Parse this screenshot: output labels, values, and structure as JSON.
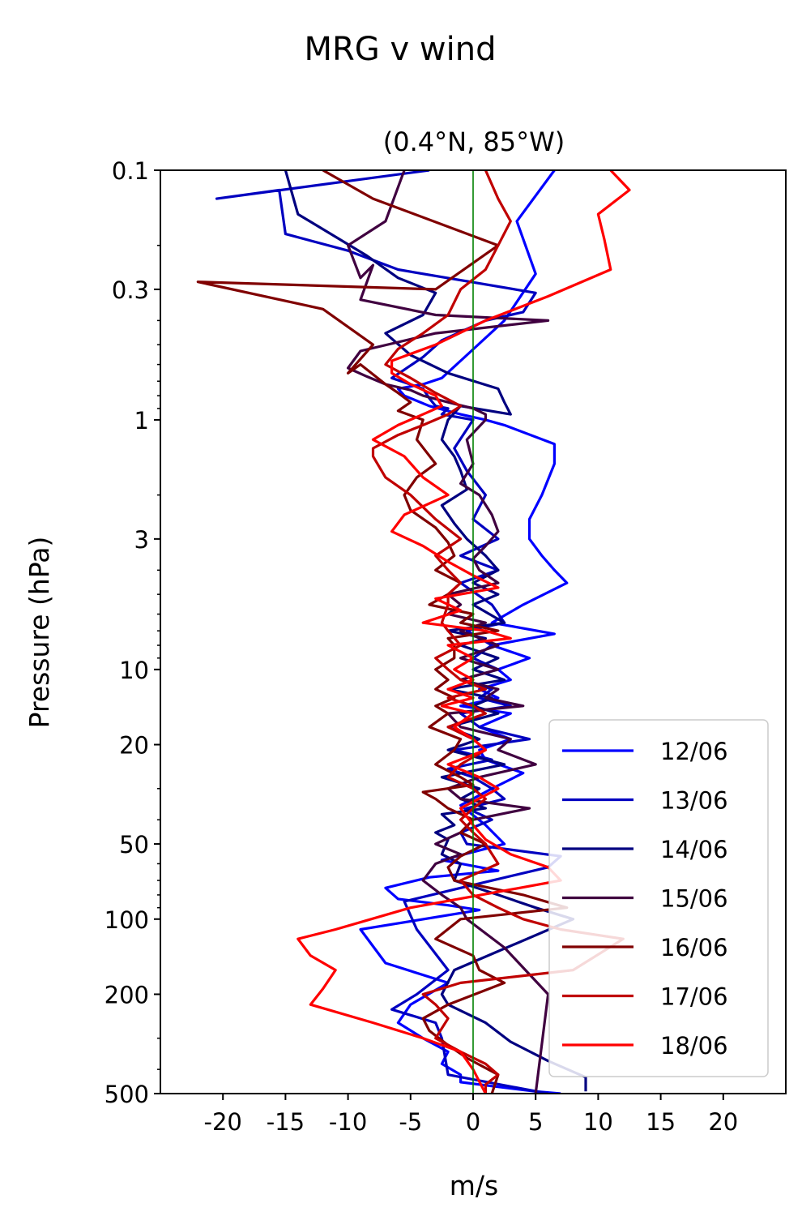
{
  "chart_data": {
    "type": "line",
    "suptitle": "MRG v wind",
    "title": "(0.4°N, 85°W)",
    "xlabel": "m/s",
    "ylabel": "Pressure (hPa)",
    "xlim": [
      -25,
      25
    ],
    "ylim": [
      500,
      0.1
    ],
    "yscale": "log",
    "y_inverted": true,
    "xticks": [
      -20,
      -15,
      -10,
      -5,
      0,
      5,
      10,
      15,
      20
    ],
    "xtick_labels": [
      "-20",
      "-15",
      "-10",
      "-5",
      "0",
      "5",
      "10",
      "15",
      "20"
    ],
    "yticks": [
      0.1,
      0.3,
      1,
      3,
      10,
      20,
      50,
      100,
      200,
      500
    ],
    "ytick_labels": [
      "0.1",
      "0.3",
      "1",
      "3",
      "10",
      "20",
      "50",
      "100",
      "200",
      "500"
    ],
    "zero_line": {
      "x": 0,
      "color": "#008000"
    },
    "grid": false,
    "legend_position": "lower right",
    "series": [
      {
        "name": "12/06",
        "color": "#0000ff",
        "x": [
          6.5,
          3.5,
          5,
          2.5,
          -0.5,
          -2.5,
          -4,
          -6,
          -5.5,
          -3.5,
          -1,
          1,
          2.5,
          6.5,
          6.5,
          5.5,
          4.5,
          4.5,
          5.5,
          6.5,
          7.5,
          4,
          1.5,
          6.5,
          1.5,
          4.5,
          2,
          3,
          0.5,
          2,
          -1,
          3,
          0.5,
          3,
          0.5,
          1,
          4,
          1.5,
          -1,
          1,
          2.5,
          -2.5,
          2,
          -3.5,
          -7,
          -6,
          -2,
          0.5,
          -9,
          -7,
          -2,
          -5,
          -6,
          -4,
          -2,
          -2.5,
          -1,
          -1,
          2,
          5,
          7
        ],
        "p": [
          0.1,
          0.16,
          0.26,
          0.4,
          0.55,
          0.68,
          0.72,
          0.75,
          0.8,
          0.88,
          0.95,
          1.0,
          1.05,
          1.25,
          1.5,
          2.0,
          2.5,
          3.0,
          3.5,
          4.0,
          4.5,
          5.5,
          6.5,
          7.2,
          8.0,
          9.0,
          10,
          11,
          12,
          13,
          14,
          15,
          17,
          19,
          21,
          23,
          26,
          30,
          35,
          42,
          50,
          58,
          64,
          68,
          75,
          83,
          88,
          92,
          110,
          150,
          180,
          220,
          260,
          300,
          340,
          380,
          420,
          450,
          470,
          490,
          500
        ]
      },
      {
        "name": "13/06",
        "color": "#0000c0",
        "x": [
          -3.5,
          -20.5,
          -15.5,
          -15,
          -10,
          -6,
          5,
          4,
          1,
          -2.5,
          -4,
          -5.5,
          -6.5,
          -4,
          -3.5,
          -3,
          -2,
          -2.5,
          0,
          -1.5,
          -0.5,
          1,
          0,
          2,
          -1,
          2,
          -1,
          1.5,
          2.5,
          -0.5,
          1.5,
          0,
          2,
          -1,
          1.5,
          0.5,
          3,
          -1,
          0.5,
          4.5,
          -1.5,
          1.5,
          -2,
          0,
          1.5,
          2.5,
          -0.5,
          1.5,
          -1,
          -0.5,
          7,
          6,
          -1,
          -5.5,
          -4.5,
          -2,
          -4.5,
          -6.5,
          -3,
          -2.5,
          -2,
          6
        ],
        "p": [
          0.1,
          0.13,
          0.12,
          0.18,
          0.21,
          0.25,
          0.31,
          0.37,
          0.4,
          0.48,
          0.56,
          0.63,
          0.68,
          0.75,
          0.82,
          0.88,
          0.9,
          0.95,
          1.0,
          1.3,
          1.6,
          2.0,
          2.5,
          3.0,
          3.5,
          4.0,
          4.5,
          5.5,
          6.5,
          7.0,
          8,
          9,
          10,
          11,
          12,
          13,
          14,
          15,
          17,
          19,
          21,
          23,
          25,
          27,
          30,
          33,
          36,
          40,
          45,
          50,
          56,
          62,
          75,
          85,
          110,
          160,
          200,
          230,
          260,
          300,
          420,
          500
        ]
      },
      {
        "name": "14/06",
        "color": "#000080",
        "x": [
          -15,
          -14,
          -8.5,
          -6,
          -3,
          -4,
          -7,
          -5,
          -2,
          2,
          2.5,
          3,
          -1,
          -2,
          -2.5,
          -1.5,
          -1,
          -0.5,
          -2.5,
          -1.5,
          -0.5,
          1,
          2,
          0,
          2,
          0,
          2.5,
          -2,
          1,
          -1,
          2,
          0,
          2.5,
          -2,
          1.5,
          0,
          2,
          -2,
          0.5,
          -2,
          2.5,
          -2.5,
          0.5,
          -1,
          1,
          -2.5,
          -1.5,
          -3,
          -2,
          -2.5,
          -1,
          -1.5,
          2,
          5,
          8,
          -1.5,
          -2.5,
          -2,
          1,
          3,
          6,
          9,
          9
        ],
        "p": [
          0.1,
          0.15,
          0.22,
          0.27,
          0.31,
          0.38,
          0.45,
          0.55,
          0.65,
          0.75,
          0.85,
          0.95,
          0.88,
          1.0,
          1.2,
          1.4,
          1.6,
          1.9,
          2.2,
          2.6,
          3.0,
          3.5,
          4.0,
          4.5,
          5.0,
          5.5,
          6.5,
          7.0,
          7.5,
          8,
          9,
          10,
          11,
          12,
          13,
          14,
          15,
          17,
          19,
          21,
          24,
          27,
          30,
          33,
          36,
          38,
          42,
          45,
          48,
          55,
          60,
          70,
          80,
          90,
          100,
          160,
          200,
          220,
          260,
          310,
          370,
          430,
          490
        ]
      },
      {
        "name": "15/06",
        "color": "#400040",
        "x": [
          -5.5,
          -7,
          -10,
          -9,
          -8,
          -9,
          -3,
          6,
          -3,
          -9,
          -10,
          -8.5,
          -7,
          -5,
          -4,
          -2,
          0,
          1,
          1,
          -0.5,
          0,
          -1,
          0.5,
          1.5,
          2,
          1,
          0,
          0.5,
          2,
          -2,
          -1,
          -2,
          1,
          -1,
          2,
          -1,
          2,
          -1,
          2,
          1,
          4,
          -2,
          -1,
          3,
          2,
          5,
          0.5,
          -2,
          -1,
          4.5,
          0,
          -1,
          -3,
          -1,
          -3,
          -4,
          -2.5,
          -1,
          -0.5,
          2.5,
          6,
          5
        ],
        "p": [
          0.1,
          0.16,
          0.2,
          0.27,
          0.24,
          0.33,
          0.38,
          0.4,
          0.45,
          0.53,
          0.62,
          0.67,
          0.72,
          0.76,
          0.8,
          0.85,
          0.9,
          0.95,
          1.0,
          1.2,
          1.5,
          1.8,
          2.0,
          2.4,
          2.8,
          3.2,
          3.6,
          4.0,
          4.5,
          5.0,
          5.5,
          6.0,
          6.5,
          7,
          8,
          9,
          10,
          11,
          12,
          13,
          14,
          15,
          17,
          19,
          21,
          24,
          27,
          30,
          33,
          36,
          40,
          45,
          50,
          55,
          60,
          70,
          80,
          90,
          100,
          130,
          200,
          500
        ]
      },
      {
        "name": "16/06",
        "color": "#800000",
        "x": [
          -12,
          -8,
          2,
          -3,
          -22,
          -12,
          -8,
          -10,
          -9,
          -7,
          -6,
          -5,
          -6,
          -4,
          -4.5,
          -3,
          -4.5,
          -5.5,
          -5,
          -3,
          -2,
          -1.5,
          -3,
          -1,
          -2,
          -3.5,
          0,
          -1,
          2,
          -2,
          -1.5,
          -1.5,
          -3,
          -2,
          -3,
          -1.5,
          -3,
          -2,
          -3.5,
          -1,
          -1.5,
          -3,
          -1,
          0,
          -4,
          -3,
          -2,
          0,
          -1,
          1,
          -1,
          -2,
          -1.5,
          4,
          7.5,
          -1,
          -3,
          0,
          0.5,
          2.5,
          -2,
          -4,
          -3.5,
          -2,
          -0.5,
          2,
          1.5
        ],
        "p": [
          0.1,
          0.13,
          0.2,
          0.3,
          0.28,
          0.36,
          0.5,
          0.65,
          0.6,
          0.72,
          0.78,
          0.85,
          0.92,
          1.0,
          1.2,
          1.5,
          1.7,
          2.0,
          2.3,
          2.7,
          3.1,
          3.5,
          4.0,
          4.5,
          5.0,
          5.5,
          6.0,
          6.5,
          7.0,
          7.5,
          8,
          9,
          10,
          11,
          12,
          13,
          14,
          15,
          17,
          19,
          21,
          24,
          27,
          29,
          31,
          33,
          36,
          40,
          45,
          50,
          56,
          62,
          70,
          80,
          90,
          100,
          120,
          140,
          160,
          180,
          220,
          250,
          280,
          320,
          360,
          420,
          500
        ]
      },
      {
        "name": "17/06",
        "color": "#c00000",
        "x": [
          1,
          2,
          3,
          2,
          1,
          -1,
          -2,
          -4,
          -6,
          -7,
          -5,
          -3,
          -1,
          -2,
          -4,
          -6,
          -8,
          -8,
          -7,
          -5,
          -3,
          -1,
          -3,
          -2,
          -1,
          -2,
          -2,
          -2.5,
          -2,
          -1,
          -3,
          -2,
          -1,
          1,
          -2,
          0,
          1,
          -2,
          0,
          1,
          -1,
          -2,
          0,
          1,
          0,
          -1,
          0,
          1,
          2,
          -1,
          0,
          2,
          4,
          7,
          12,
          8,
          -1,
          -4,
          -3,
          -2,
          -3,
          -1,
          1,
          2,
          1,
          1
        ],
        "p": [
          0.1,
          0.13,
          0.16,
          0.2,
          0.25,
          0.3,
          0.38,
          0.45,
          0.52,
          0.6,
          0.68,
          0.78,
          0.88,
          0.95,
          1.05,
          1.15,
          1.3,
          1.4,
          1.7,
          2.0,
          2.5,
          3.0,
          3.5,
          4.0,
          4.5,
          5.0,
          5.5,
          6.5,
          7,
          8,
          9,
          10,
          11,
          12,
          13,
          14,
          15,
          17,
          19,
          21,
          24,
          27,
          30,
          33,
          36,
          40,
          45,
          50,
          60,
          70,
          80,
          90,
          100,
          110,
          120,
          160,
          180,
          200,
          220,
          250,
          300,
          340,
          380,
          420,
          460,
          500
        ]
      },
      {
        "name": "18/06",
        "color": "#ff0000",
        "x": [
          11,
          12.5,
          10,
          10.5,
          11,
          6,
          1,
          -3,
          -6.5,
          -6.5,
          -5,
          -3,
          -2.5,
          -4,
          -6,
          -8,
          -5.5,
          -4,
          -2,
          -5.5,
          -6.5,
          -4,
          -2,
          0,
          2,
          -3,
          -1,
          -4,
          1,
          3,
          -2,
          0,
          -1.5,
          0,
          -2,
          0,
          -2.5,
          0,
          -1.5,
          0,
          1,
          -2,
          0.5,
          2,
          -1,
          0,
          1,
          3,
          6,
          7,
          -5,
          -11,
          -14,
          -13,
          -11,
          -12,
          -13,
          -8,
          -4,
          -1,
          0,
          1
        ],
        "p": [
          0.1,
          0.12,
          0.15,
          0.19,
          0.25,
          0.32,
          0.4,
          0.5,
          0.58,
          0.65,
          0.72,
          0.8,
          0.88,
          0.95,
          1.05,
          1.2,
          1.4,
          1.7,
          2.0,
          2.4,
          2.8,
          3.2,
          3.7,
          4.2,
          4.7,
          5.2,
          5.8,
          6.5,
          7.0,
          7.5,
          8,
          9,
          10,
          11,
          12,
          13,
          14,
          15,
          17,
          19,
          21,
          24,
          27,
          30,
          36,
          42,
          48,
          55,
          62,
          70,
          90,
          110,
          120,
          140,
          160,
          190,
          220,
          260,
          300,
          340,
          400,
          500
        ]
      }
    ]
  }
}
